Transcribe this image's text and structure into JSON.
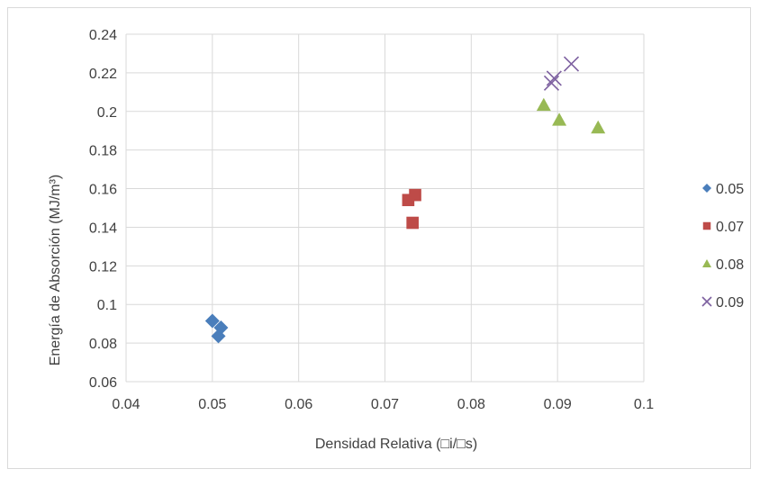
{
  "chart_data": {
    "type": "scatter",
    "xlabel": "Densidad Relativa (□i/□s)",
    "ylabel": "Energía de Absorción (MJ/m³)",
    "xlim": [
      0.04,
      0.1
    ],
    "ylim": [
      0.06,
      0.24
    ],
    "x_ticks": [
      "0.04",
      "0.05",
      "0.06",
      "0.07",
      "0.08",
      "0.09",
      "0.1"
    ],
    "y_ticks": [
      "0.06",
      "0.08",
      "0.1",
      "0.12",
      "0.14",
      "0.16",
      "0.18",
      "0.2",
      "0.22",
      "0.24"
    ],
    "grid": "major",
    "legend_position": "right",
    "series": [
      {
        "name": "0.05",
        "marker": "diamond",
        "color": "#4a7ebb",
        "points": [
          [
            0.05,
            0.0915
          ],
          [
            0.051,
            0.088
          ],
          [
            0.0507,
            0.0836
          ]
        ]
      },
      {
        "name": "0.07",
        "marker": "square",
        "color": "#be4b48",
        "points": [
          [
            0.0727,
            0.1541
          ],
          [
            0.0735,
            0.1567
          ],
          [
            0.0732,
            0.1423
          ]
        ]
      },
      {
        "name": "0.08",
        "marker": "triangle",
        "color": "#98b954",
        "points": [
          [
            0.0884,
            0.2033
          ],
          [
            0.0902,
            0.1956
          ],
          [
            0.0947,
            0.1916
          ]
        ]
      },
      {
        "name": "0.09",
        "marker": "x",
        "color": "#7d60a0",
        "points": [
          [
            0.0893,
            0.2147
          ],
          [
            0.0896,
            0.2172
          ],
          [
            0.0916,
            0.2246
          ]
        ]
      }
    ]
  }
}
